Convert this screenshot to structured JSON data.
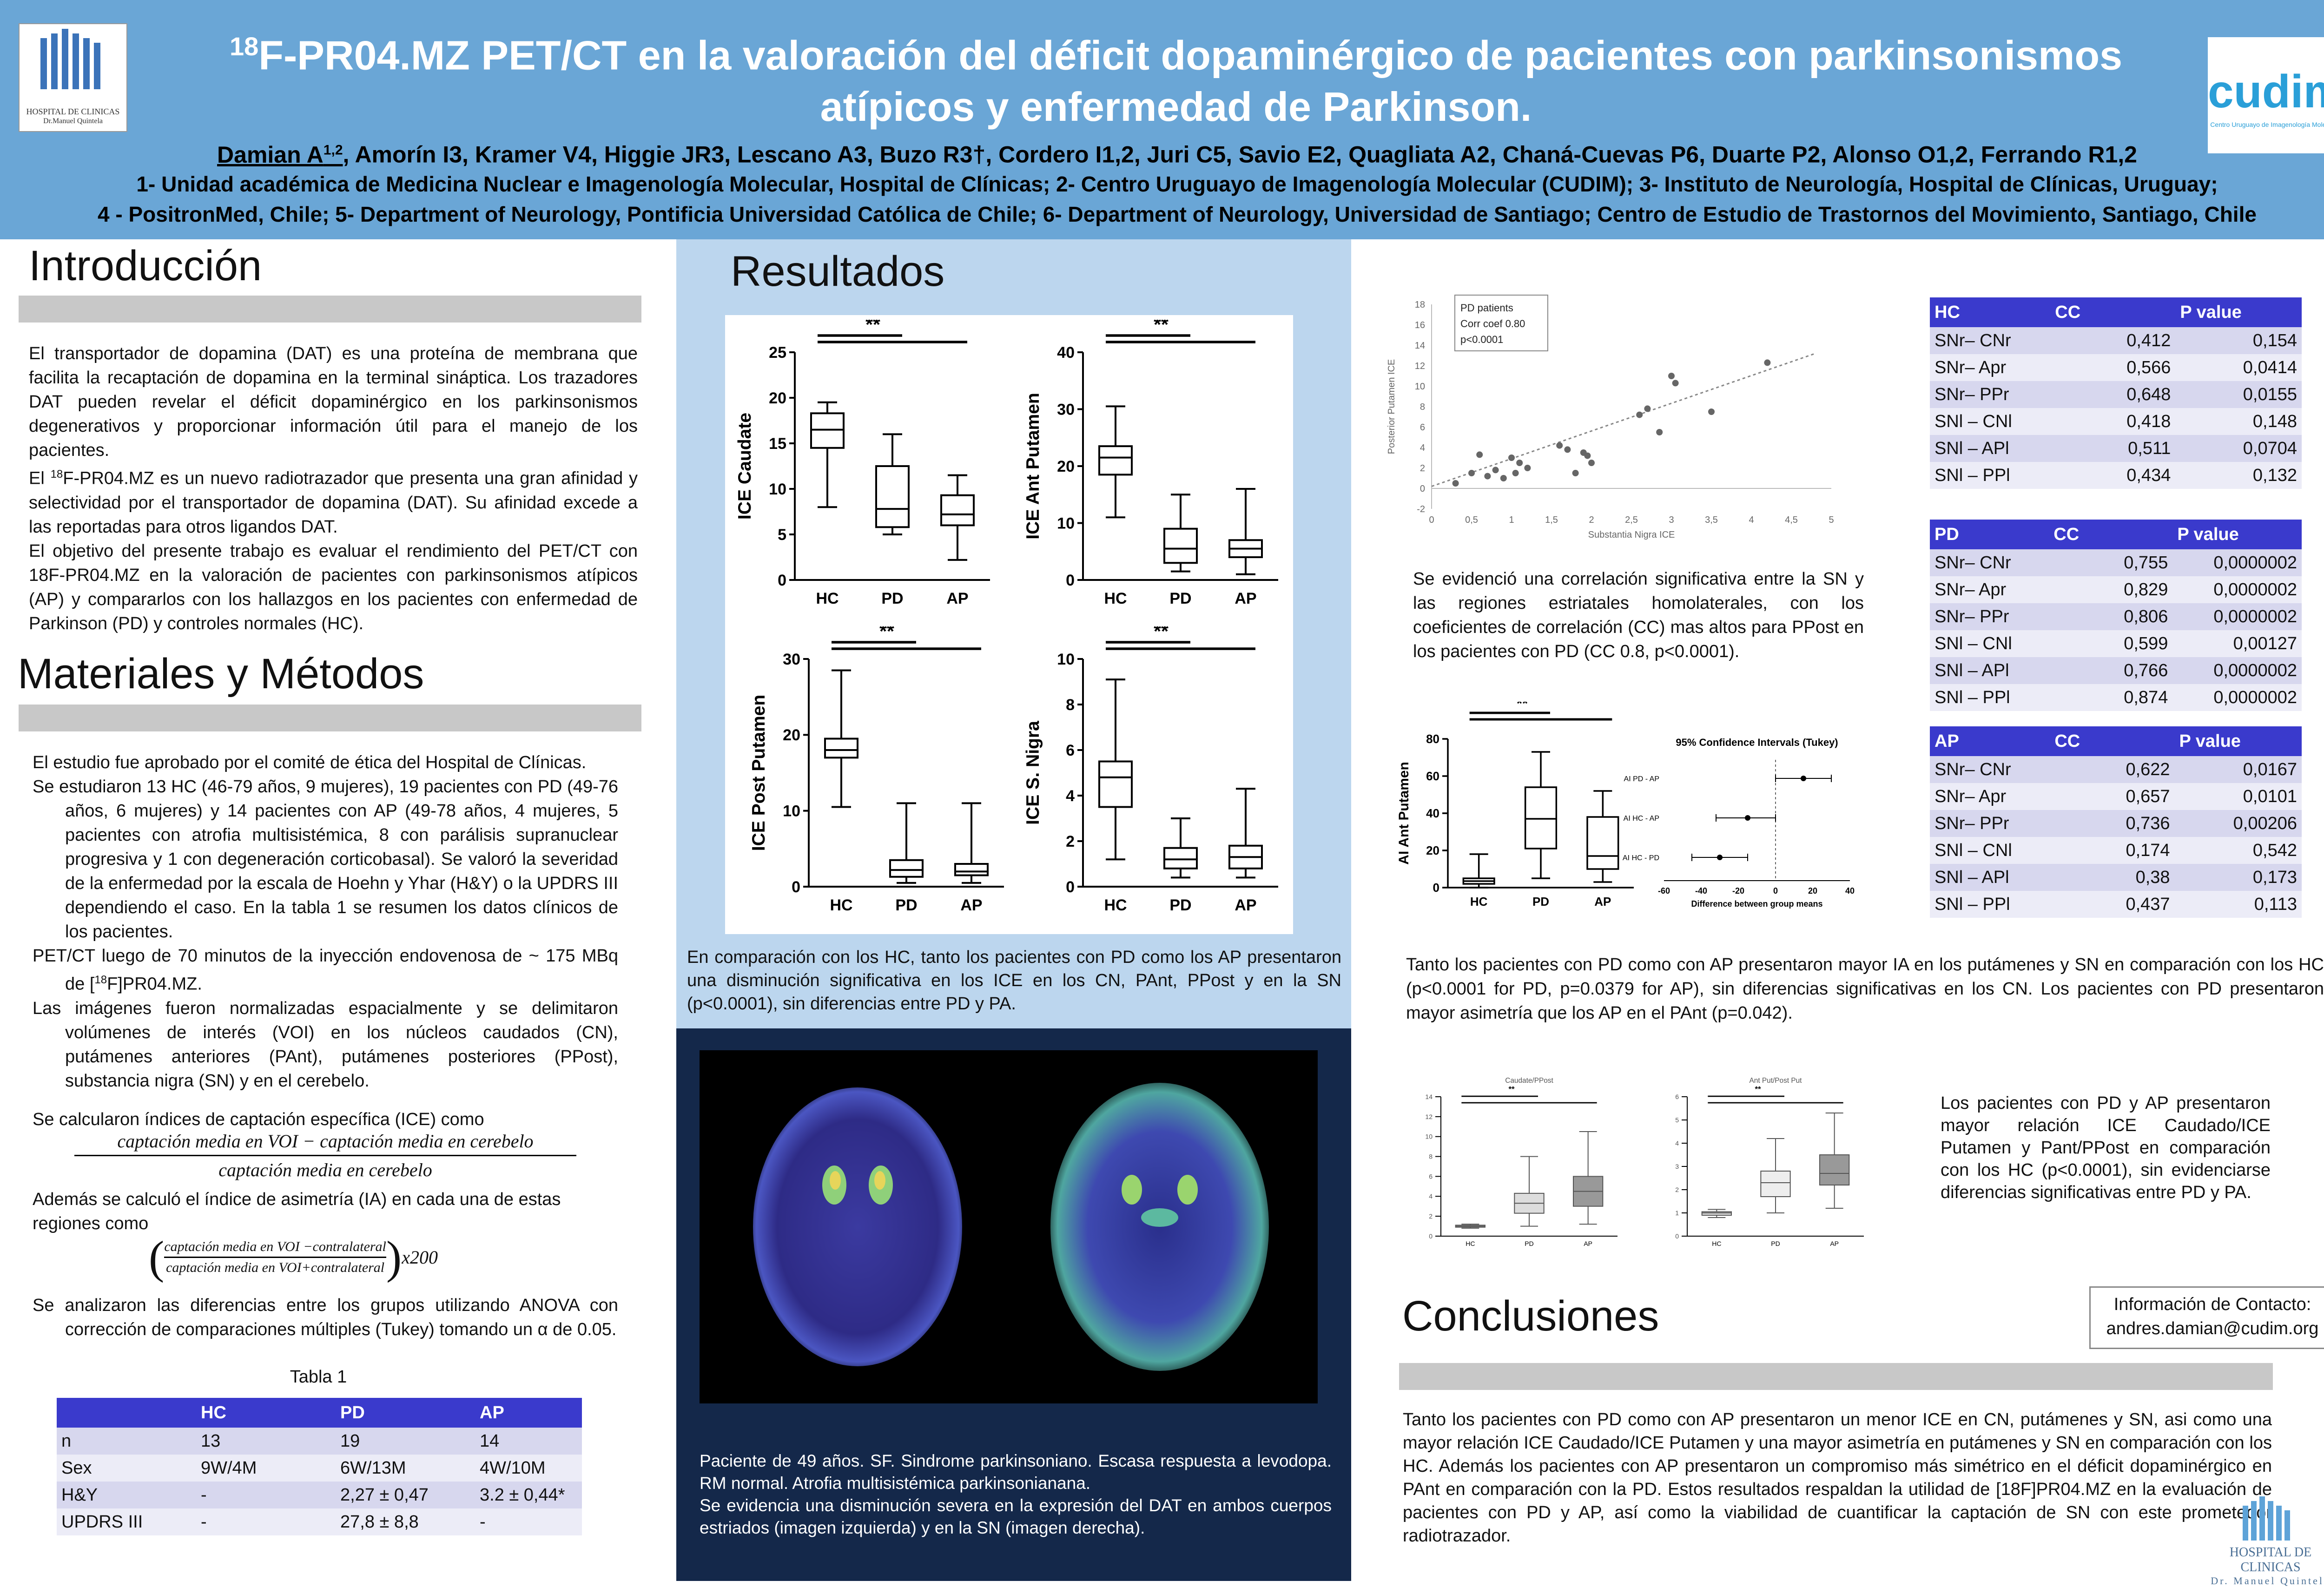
{
  "header": {
    "title_sup": "18",
    "title_line1": "F-PR04.MZ PET/CT en la valoración del déficit dopaminérgico de pacientes con parkinsonismos",
    "title_line2": "atípicos y enfermedad de Parkinson.",
    "authors_first": "Damian A",
    "authors_first_sup": "1,2",
    "authors_rest": ", Amorín I3, Kramer V4, Higgie JR3, Lescano A3, Buzo R3†, Cordero I1,2, Juri C5, Savio E2, Quagliata A2, Chaná-Cuevas P6, Duarte P2, Alonso O1,2, Ferrando R1,2",
    "affil1": "1- Unidad académica de Medicina Nuclear e Imagenología Molecular, Hospital de Clínicas; 2- Centro Uruguayo de Imagenología Molecular (CUDIM); 3- Instituto de Neurología, Hospital de Clínicas, Uruguay;",
    "affil2": "4 - PositronMed, Chile; 5- Department of Neurology, Pontificia Universidad Católica de Chile; 6- Department of Neurology, Universidad de Santiago; Centro de Estudio de Trastornos del Movimiento, Santiago, Chile",
    "logo_left_text1": "HOSPITAL DE CLINICAS",
    "logo_left_text2": "Dr.Manuel Quintela",
    "logo_right_text1": "cudim",
    "logo_right_text2": "Centro Uruguayo de Imagenología Molecular"
  },
  "intro": {
    "heading": "Introducción",
    "p1": "El transportador de dopamina (DAT) es una proteína de membrana que facilita la recaptación de dopamina en la terminal sináptica. Los trazadores DAT pueden revelar el déficit dopaminérgico en los parkinsonismos degenerativos y proporcionar información útil para el manejo de los pacientes.",
    "p2_pre": "El ",
    "p2_sup": "18",
    "p2_post": "F-PR04.MZ es un nuevo radiotrazador que presenta una gran afinidad y selectividad por el transportador de dopamina (DAT). Su afinidad excede a las reportadas para otros ligandos DAT.",
    "p3": "El objetivo del presente trabajo es evaluar el rendimiento del PET/CT con 18F-PR04.MZ en la valoración de pacientes con parkinsonismos atípicos (AP) y compararlos con los hallazgos en los pacientes con enfermedad de Parkinson (PD) y controles normales (HC)."
  },
  "methods": {
    "heading": "Materiales y Métodos",
    "p1": "El estudio fue aprobado por el comité de ética del Hospital de Clínicas.",
    "p2": "Se estudiaron 13 HC (46-79 años, 9 mujeres), 19 pacientes con PD (49-76 años, 6 mujeres) y 14 pacientes con AP (49-78 años, 4 mujeres, 5 pacientes con atrofia multisistémica, 8 con parálisis supranuclear progresiva y 1 con degeneración corticobasal). Se valoró la severidad de la enfermedad por la escala de Hoehn y Yhar (H&Y) o la UPDRS III dependiendo el caso. En la tabla 1 se resumen los datos clínicos de los pacientes.",
    "p3_pre": "PET/CT luego de 70 minutos de la inyección endovenosa de ~ 175 MBq de  [",
    "p3_sup": "18",
    "p3_post": "F]PR04.MZ.",
    "p4": "Las imágenes fueron normalizadas espacialmente y se delimitaron volúmenes de interés (VOI) en los núcleos caudados (CN), putámenes anteriores (PAnt), putámenes posteriores (PPost), substancia nigra (SN) y en el cerebelo.",
    "p5": "Se calcularon índices de captación específica (ICE) como",
    "formula1_num": "captación media en VOI  − captación media en cerebelo",
    "formula1_den": "captación media en cerebelo",
    "p6": "Además se calculó el índice de asimetría (IA) en cada una de estas regiones como",
    "formula2_num": "captación media en  VOI −contralateral",
    "formula2_den": "captación media en VOI+contralateral",
    "formula2_mult": "x200",
    "p7": "Se analizaron las diferencias entre los grupos utilizando ANOVA con corrección de comparaciones múltiples (Tukey) tomando un α de 0.05.",
    "table_caption": "Tabla 1",
    "table1": {
      "headers": [
        "",
        "HC",
        "PD",
        "AP"
      ],
      "rows": [
        [
          "n",
          "13",
          "19",
          "14"
        ],
        [
          "Sex",
          "9W/4M",
          "6W/13M",
          "4W/10M"
        ],
        [
          "H&Y",
          "-",
          "2,27 ± 0,47",
          "3.2 ± 0,44*"
        ],
        [
          "UPDRS III",
          "-",
          "27,8 ± 8,8",
          "-"
        ]
      ]
    }
  },
  "results": {
    "heading": "Resultados",
    "boxplot_text": "En comparación con los HC, tanto los pacientes con PD como los AP presentaron una disminución significativa en los ICE en los CN, PAnt, PPost y en la SN (p<0.0001), sin diferencias entre PD y PA.",
    "pet_caption1": "Paciente de 49 años. SF. Sindrome parkinsoniano. Escasa respuesta a levodopa. RM normal. Atrofia multisistémica parkinsonianana.",
    "pet_caption2": "Se evidencia una disminución severa en la expresión del DAT en ambos cuerpos estriados (imagen izquierda) y en la SN (imagen derecha).",
    "scatter_text": "Se evidenció una correlación significativa entre la SN y las regiones estriatales homolaterales, con los coeficientes de correlación (CC) mas altos para PPost en los pacientes con PD (CC 0.8, p<0.0001).",
    "ia_text": "Tanto los pacientes con PD como con AP presentaron mayor IA en los putámenes y SN en comparación con los HC (p<0.0001 for PD, p=0.0379 for AP), sin diferencias significativas en los CN. Los pacientes con PD presentaron mayor asimetría que los AP en el PAnt (p=0.042).",
    "ratio_text": "Los pacientes con PD y AP presentaron mayor relación ICE Caudado/ICE Putamen y Pant/PPost en comparación con los HC (p<0.0001), sin evidenciarse diferencias significativas entre PD y PA."
  },
  "cc_tables": [
    {
      "group": "HC",
      "h_cc": "CC",
      "h_p": "P value",
      "rows": [
        [
          "SNr– CNr",
          "0,412",
          "0,154"
        ],
        [
          "SNr– Apr",
          "0,566",
          "0,0414"
        ],
        [
          "SNr– PPr",
          "0,648",
          "0,0155"
        ],
        [
          "SNl – CNl",
          "0,418",
          "0,148"
        ],
        [
          "SNl – APl",
          "0,511",
          "0,0704"
        ],
        [
          "SNl – PPl",
          "0,434",
          "0,132"
        ]
      ]
    },
    {
      "group": "PD",
      "h_cc": "CC",
      "h_p": "P value",
      "rows": [
        [
          "SNr– CNr",
          "0,755",
          "0,0000002"
        ],
        [
          "SNr– Apr",
          "0,829",
          "0,0000002"
        ],
        [
          "SNr– PPr",
          "0,806",
          "0,0000002"
        ],
        [
          "SNl – CNl",
          "0,599",
          "0,00127"
        ],
        [
          "SNl – APl",
          "0,766",
          "0,0000002"
        ],
        [
          "SNl – PPl",
          "0,874",
          "0,0000002"
        ]
      ]
    },
    {
      "group": "AP",
      "h_cc": "CC",
      "h_p": "P value",
      "rows": [
        [
          "SNr– CNr",
          "0,622",
          "0,0167"
        ],
        [
          "SNr– Apr",
          "0,657",
          "0,0101"
        ],
        [
          "SNr– PPr",
          "0,736",
          "0,00206"
        ],
        [
          "SNl – CNl",
          "0,174",
          "0,542"
        ],
        [
          "SNl – APl",
          "0,38",
          "0,173"
        ],
        [
          "SNl – PPl",
          "0,437",
          "0,113"
        ]
      ]
    }
  ],
  "conclusions": {
    "heading": "Conclusiones",
    "text": "Tanto los pacientes con PD como con AP presentaron un menor ICE en CN, putámenes y SN, asi como una mayor relación ICE Caudado/ICE Putamen y una mayor asimetría en putámenes y SN en comparación con los HC. Además los pacientes con AP presentaron un compromiso más simétrico en el déficit dopaminérgico en PAnt en comparación con la PD. Estos resultados respaldan la utilidad de [18F]PR04.MZ en la evaluación de pacientes con PD y AP, así como la viabilidad de cuantificar la captación de SN con este prometedor radiotrazador."
  },
  "contact": {
    "label": "Información de Contacto:",
    "email": "andres.damian@cudim.org"
  },
  "footer_logo": {
    "text1": "HOSPITAL DE CLINICAS",
    "text2": "Dr. Manuel Quintela"
  },
  "chart_data": [
    {
      "type": "box",
      "id": "ice-caudate",
      "ylabel": "ICE Caudate",
      "categories": [
        "HC",
        "PD",
        "AP"
      ],
      "ylim": [
        0,
        25
      ],
      "yticks": [
        "0",
        "5",
        "10",
        "15",
        "20",
        "25"
      ],
      "annotation": "**",
      "boxes": [
        {
          "min": 8,
          "q1": 14.5,
          "median": 16.5,
          "q3": 18.3,
          "max": 19.5
        },
        {
          "min": 5,
          "q1": 5.8,
          "median": 7.8,
          "q3": 12.5,
          "max": 16
        },
        {
          "min": 2.2,
          "q1": 6,
          "median": 7.2,
          "q3": 9.3,
          "max": 11.5
        }
      ]
    },
    {
      "type": "box",
      "id": "ice-ant-putamen",
      "ylabel": "ICE Ant Putamen",
      "categories": [
        "HC",
        "PD",
        "AP"
      ],
      "ylim": [
        0,
        40
      ],
      "yticks": [
        "0",
        "10",
        "20",
        "30",
        "40"
      ],
      "annotation": "**",
      "boxes": [
        {
          "min": 11,
          "q1": 18.5,
          "median": 21.5,
          "q3": 23.5,
          "max": 30.5
        },
        {
          "min": 1.5,
          "q1": 3,
          "median": 5.5,
          "q3": 9,
          "max": 15
        },
        {
          "min": 1,
          "q1": 4,
          "median": 5.5,
          "q3": 7,
          "max": 16
        }
      ]
    },
    {
      "type": "box",
      "id": "ice-post-putamen",
      "ylabel": "ICE Post Putamen",
      "categories": [
        "HC",
        "PD",
        "AP"
      ],
      "ylim": [
        0,
        30
      ],
      "yticks": [
        "0",
        "10",
        "20",
        "30"
      ],
      "annotation": "**",
      "boxes": [
        {
          "min": 10.5,
          "q1": 17,
          "median": 18,
          "q3": 19.5,
          "max": 28.5
        },
        {
          "min": 0.5,
          "q1": 1.3,
          "median": 2.2,
          "q3": 3.5,
          "max": 11
        },
        {
          "min": 0.5,
          "q1": 1.5,
          "median": 2,
          "q3": 3,
          "max": 11
        }
      ]
    },
    {
      "type": "box",
      "id": "ice-s-nigra",
      "ylabel": "ICE S. Nigra",
      "categories": [
        "HC",
        "PD",
        "AP"
      ],
      "ylim": [
        0,
        10
      ],
      "yticks": [
        "0",
        "2",
        "4",
        "6",
        "8",
        "10"
      ],
      "annotation": "**",
      "boxes": [
        {
          "min": 1.2,
          "q1": 3.5,
          "median": 4.8,
          "q3": 5.5,
          "max": 9.1
        },
        {
          "min": 0.4,
          "q1": 0.8,
          "median": 1.2,
          "q3": 1.7,
          "max": 3
        },
        {
          "min": 0.4,
          "q1": 0.8,
          "median": 1.3,
          "q3": 1.8,
          "max": 4.3
        }
      ]
    },
    {
      "type": "scatter",
      "id": "scatter-sn-pput",
      "xlabel": "Substantia Nigra ICE",
      "ylabel": "Posterior Putamen ICE",
      "legend_lines": [
        "PD patients",
        "Corr coef 0.80",
        "p<0.0001"
      ],
      "xlim": [
        0,
        5
      ],
      "ylim": [
        -2,
        18
      ],
      "xticks": [
        "0",
        "0,5",
        "1",
        "1,5",
        "2",
        "2,5",
        "3",
        "3,5",
        "4",
        "4,5",
        "5"
      ],
      "yticks": [
        "-2",
        "0",
        "2",
        "4",
        "6",
        "8",
        "10",
        "12",
        "14",
        "16",
        "18"
      ],
      "x": [
        0.3,
        0.5,
        0.6,
        0.7,
        0.8,
        0.9,
        1.0,
        1.05,
        1.1,
        1.2,
        1.6,
        1.7,
        1.8,
        1.9,
        1.95,
        2.0,
        2.6,
        2.7,
        2.85,
        3.0,
        3.05,
        3.5,
        4.2
      ],
      "y": [
        0.5,
        1.5,
        3.3,
        1.2,
        1.8,
        1.0,
        3.0,
        1.5,
        2.5,
        2.0,
        4.2,
        3.8,
        1.5,
        3.5,
        3.2,
        2.5,
        7.2,
        7.8,
        5.5,
        11.0,
        10.3,
        7.5,
        12.3
      ],
      "trend": [
        [
          0,
          0.2
        ],
        [
          4.8,
          13.2
        ]
      ]
    },
    {
      "type": "box",
      "id": "ai-ant-putamen",
      "ylabel": "AI Ant Putamen",
      "categories": [
        "HC",
        "PD",
        "AP"
      ],
      "ylim": [
        0,
        80
      ],
      "yticks": [
        "0",
        "20",
        "40",
        "60",
        "80"
      ],
      "annotation": "**",
      "boxes": [
        {
          "min": 0,
          "q1": 2,
          "median": 3.5,
          "q3": 5,
          "max": 18
        },
        {
          "min": 5,
          "q1": 21,
          "median": 37,
          "q3": 54,
          "max": 73
        },
        {
          "min": 3,
          "q1": 10,
          "median": 17,
          "q3": 38,
          "max": 52
        }
      ]
    },
    {
      "type": "ci",
      "id": "tukey-ci",
      "title": "95% Confidence Intervals (Tukey)",
      "xlabel": "Difference between group means",
      "xlim": [
        -60,
        40
      ],
      "xticks": [
        "-60",
        "-40",
        "-20",
        "0",
        "20",
        "40"
      ],
      "rows": [
        {
          "label": "AI PD - AP",
          "center": 15,
          "lo": 0,
          "hi": 30
        },
        {
          "label": "AI HC - AP",
          "center": -15,
          "lo": -32,
          "hi": 0
        },
        {
          "label": "AI HC - PD",
          "center": -30,
          "lo": -45,
          "hi": -15
        }
      ]
    },
    {
      "type": "box",
      "id": "ratio-caud-pput",
      "title": "Caudate/PPost",
      "categories": [
        "HC",
        "PD",
        "AP"
      ],
      "ylim": [
        0,
        14
      ],
      "yticks": [
        "0",
        "2",
        "4",
        "6",
        "8",
        "10",
        "12",
        "14"
      ],
      "annotation": "**",
      "boxes": [
        {
          "min": 0.8,
          "q1": 0.9,
          "median": 1.0,
          "q3": 1.1,
          "max": 1.2
        },
        {
          "min": 1,
          "q1": 2.3,
          "median": 3.3,
          "q3": 4.3,
          "max": 8
        },
        {
          "min": 1.2,
          "q1": 3,
          "median": 4.5,
          "q3": 6,
          "max": 10.5
        }
      ]
    },
    {
      "type": "box",
      "id": "ratio-pant-pput",
      "title": "Ant Put/Post Put",
      "categories": [
        "HC",
        "PD",
        "AP"
      ],
      "ylim": [
        0,
        6
      ],
      "yticks": [
        "0",
        "1",
        "2",
        "3",
        "4",
        "5",
        "6"
      ],
      "annotation": "**",
      "boxes": [
        {
          "min": 0.8,
          "q1": 0.9,
          "median": 1.0,
          "q3": 1.05,
          "max": 1.15
        },
        {
          "min": 1,
          "q1": 1.7,
          "median": 2.3,
          "q3": 2.8,
          "max": 4.2
        },
        {
          "min": 1.2,
          "q1": 2.2,
          "median": 2.7,
          "q3": 3.5,
          "max": 5.3
        }
      ]
    }
  ]
}
